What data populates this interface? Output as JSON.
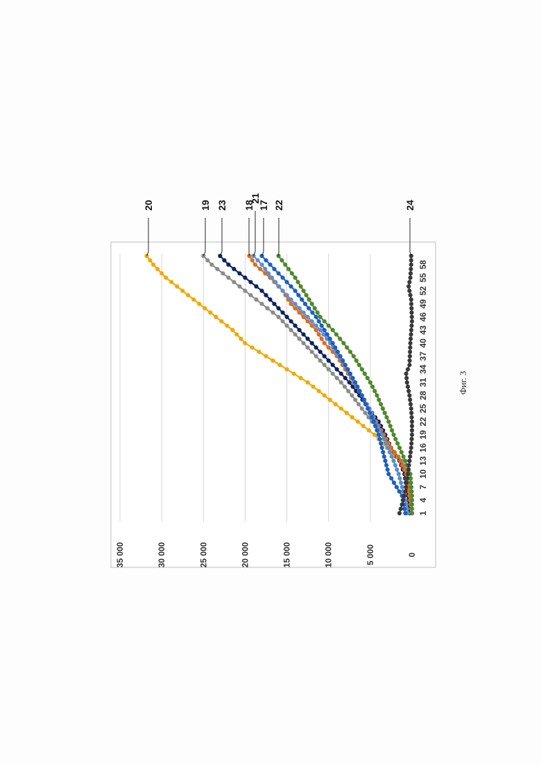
{
  "chart_data": {
    "type": "line",
    "orientation": "rotated-90-ccw",
    "title": "",
    "xlabel": "",
    "ylabel": "",
    "grid": true,
    "legend": "none (series identified by numeric callout labels)",
    "x": [
      1,
      2,
      3,
      4,
      5,
      6,
      7,
      8,
      9,
      10,
      11,
      12,
      13,
      14,
      15,
      16,
      17,
      18,
      19,
      20,
      21,
      22,
      23,
      24,
      25,
      26,
      27,
      28,
      29,
      30,
      31,
      32,
      33,
      34,
      35,
      36,
      37,
      38,
      39,
      40,
      41,
      42,
      43,
      44,
      45,
      46,
      47,
      48,
      49,
      50,
      51,
      52,
      53,
      54,
      55,
      56,
      57,
      58,
      59,
      60
    ],
    "x_tick_labels": [
      "1",
      "4",
      "7",
      "10",
      "13",
      "16",
      "19",
      "22",
      "25",
      "28",
      "31",
      "34",
      "37",
      "40",
      "43",
      "46",
      "49",
      "52",
      "55",
      "58"
    ],
    "y_tick_labels": [
      "0",
      "5 000",
      "10 000",
      "15 000",
      "20 000",
      "25 000",
      "30 000",
      "35 000"
    ],
    "ylim": [
      0,
      35000
    ],
    "series": [
      {
        "name": "20",
        "color": "#f2a900",
        "anchors": [
          [
            1,
            0
          ],
          [
            5,
            300
          ],
          [
            10,
            800
          ],
          [
            13,
            1500
          ],
          [
            16,
            3000
          ],
          [
            19,
            4500
          ],
          [
            22,
            6500
          ],
          [
            25,
            8500
          ],
          [
            28,
            10500
          ],
          [
            31,
            12500
          ],
          [
            34,
            15000
          ],
          [
            37,
            17500
          ],
          [
            40,
            20000
          ],
          [
            43,
            21500
          ],
          [
            46,
            23500
          ],
          [
            49,
            25500
          ],
          [
            52,
            27500
          ],
          [
            55,
            29500
          ],
          [
            58,
            31000
          ],
          [
            60,
            31800
          ]
        ]
      },
      {
        "name": "19",
        "color": "#8c8c8c",
        "anchors": [
          [
            1,
            0
          ],
          [
            5,
            200
          ],
          [
            10,
            500
          ],
          [
            13,
            1200
          ],
          [
            16,
            2500
          ],
          [
            19,
            3500
          ],
          [
            22,
            4800
          ],
          [
            25,
            6000
          ],
          [
            28,
            7200
          ],
          [
            31,
            8500
          ],
          [
            34,
            10000
          ],
          [
            37,
            11500
          ],
          [
            40,
            13000
          ],
          [
            43,
            14500
          ],
          [
            46,
            16000
          ],
          [
            49,
            18000
          ],
          [
            52,
            20000
          ],
          [
            55,
            22000
          ],
          [
            58,
            24000
          ],
          [
            60,
            25000
          ]
        ]
      },
      {
        "name": "23",
        "color": "#0d2461",
        "anchors": [
          [
            1,
            300
          ],
          [
            5,
            500
          ],
          [
            10,
            900
          ],
          [
            13,
            1500
          ],
          [
            16,
            2500
          ],
          [
            19,
            3200
          ],
          [
            22,
            4000
          ],
          [
            25,
            5200
          ],
          [
            28,
            6300
          ],
          [
            31,
            7500
          ],
          [
            34,
            9000
          ],
          [
            37,
            10500
          ],
          [
            40,
            12000
          ],
          [
            43,
            13500
          ],
          [
            46,
            15000
          ],
          [
            49,
            16500
          ],
          [
            52,
            18000
          ],
          [
            55,
            20000
          ],
          [
            58,
            22000
          ],
          [
            60,
            23000
          ]
        ]
      },
      {
        "name": "18",
        "color": "#e06b1e",
        "anchors": [
          [
            1,
            0
          ],
          [
            5,
            300
          ],
          [
            10,
            700
          ],
          [
            13,
            1400
          ],
          [
            16,
            2500
          ],
          [
            19,
            3400
          ],
          [
            22,
            4300
          ],
          [
            25,
            5200
          ],
          [
            28,
            6000
          ],
          [
            31,
            7000
          ],
          [
            34,
            8000
          ],
          [
            37,
            9000
          ],
          [
            40,
            10500
          ],
          [
            43,
            11500
          ],
          [
            46,
            13000
          ],
          [
            49,
            14500
          ],
          [
            52,
            15500
          ],
          [
            55,
            17000
          ],
          [
            58,
            18800
          ],
          [
            60,
            19500
          ]
        ]
      },
      {
        "name": "21",
        "color": "#5b8fd0",
        "anchors": [
          [
            1,
            500
          ],
          [
            5,
            900
          ],
          [
            10,
            1600
          ],
          [
            13,
            2200
          ],
          [
            16,
            2900
          ],
          [
            19,
            3600
          ],
          [
            22,
            4400
          ],
          [
            25,
            5100
          ],
          [
            28,
            6000
          ],
          [
            31,
            6900
          ],
          [
            34,
            7800
          ],
          [
            37,
            8800
          ],
          [
            40,
            9800
          ],
          [
            43,
            11000
          ],
          [
            46,
            12500
          ],
          [
            49,
            14000
          ],
          [
            52,
            15500
          ],
          [
            55,
            16800
          ],
          [
            58,
            18000
          ],
          [
            60,
            19000
          ]
        ]
      },
      {
        "name": "17",
        "color": "#1f5fbf",
        "anchors": [
          [
            1,
            800
          ],
          [
            5,
            1200
          ],
          [
            10,
            2800
          ],
          [
            13,
            3200
          ],
          [
            16,
            3600
          ],
          [
            19,
            4000
          ],
          [
            22,
            4600
          ],
          [
            25,
            5300
          ],
          [
            28,
            6000
          ],
          [
            31,
            6800
          ],
          [
            34,
            7700
          ],
          [
            37,
            8600
          ],
          [
            40,
            9500
          ],
          [
            43,
            10500
          ],
          [
            46,
            11500
          ],
          [
            49,
            12800
          ],
          [
            52,
            14000
          ],
          [
            55,
            15500
          ],
          [
            58,
            17000
          ],
          [
            60,
            18000
          ]
        ]
      },
      {
        "name": "22",
        "color": "#4f8a2a",
        "anchors": [
          [
            1,
            0
          ],
          [
            5,
            0
          ],
          [
            10,
            200
          ],
          [
            13,
            800
          ],
          [
            16,
            1500
          ],
          [
            19,
            2200
          ],
          [
            22,
            2800
          ],
          [
            25,
            3500
          ],
          [
            28,
            4200
          ],
          [
            31,
            5000
          ],
          [
            34,
            6000
          ],
          [
            37,
            7000
          ],
          [
            40,
            8200
          ],
          [
            43,
            9500
          ],
          [
            46,
            11000
          ],
          [
            49,
            12000
          ],
          [
            52,
            13000
          ],
          [
            55,
            14000
          ],
          [
            58,
            15200
          ],
          [
            60,
            16000
          ]
        ]
      },
      {
        "name": "24",
        "color": "#3a3a3a",
        "anchors": [
          [
            1,
            1500
          ],
          [
            3,
            1200
          ],
          [
            6,
            800
          ],
          [
            10,
            500
          ],
          [
            13,
            300
          ],
          [
            16,
            100
          ],
          [
            19,
            0
          ],
          [
            22,
            0
          ],
          [
            25,
            100
          ],
          [
            28,
            300
          ],
          [
            31,
            600
          ],
          [
            33,
            700
          ],
          [
            35,
            300
          ],
          [
            40,
            200
          ],
          [
            45,
            0
          ],
          [
            50,
            100
          ],
          [
            53,
            400
          ],
          [
            55,
            200
          ],
          [
            58,
            100
          ],
          [
            60,
            100
          ]
        ]
      }
    ]
  },
  "caption": "Фиг. 3"
}
